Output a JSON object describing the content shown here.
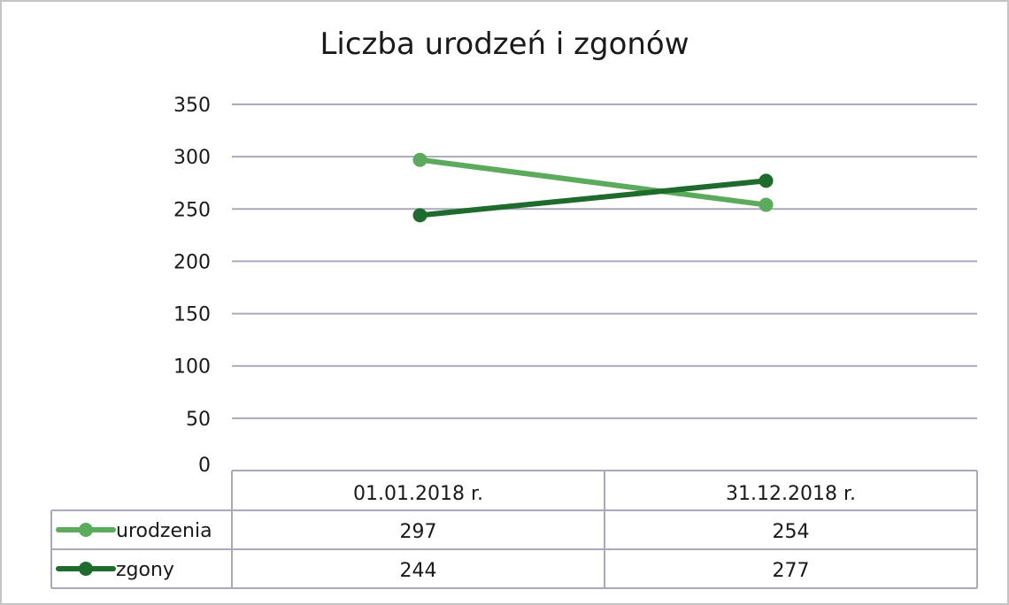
{
  "chart_data": {
    "type": "line",
    "title": "Liczba urodzeń i zgonów",
    "xlabel": "",
    "ylabel": "",
    "categories": [
      "01.01.2018 r.",
      "31.12.2018 r."
    ],
    "ylim": [
      0,
      350
    ],
    "yticks": [
      0,
      50,
      100,
      150,
      200,
      250,
      300,
      350
    ],
    "grid": true,
    "legend_placement": "data-table-left",
    "series": [
      {
        "name": "urodzenia",
        "values": [
          297,
          254
        ],
        "color": "#5cab5c"
      },
      {
        "name": "zgony",
        "values": [
          244,
          277
        ],
        "color": "#1e6b2d"
      }
    ]
  }
}
